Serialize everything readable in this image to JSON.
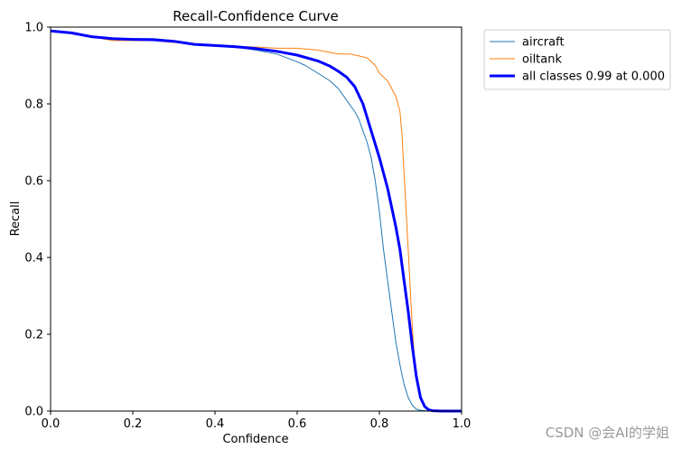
{
  "chart_data": {
    "type": "line",
    "title": "Recall-Confidence Curve",
    "xlabel": "Confidence",
    "ylabel": "Recall",
    "xlim": [
      0,
      1
    ],
    "ylim": [
      0,
      1
    ],
    "xticks": [
      "0.0",
      "0.2",
      "0.4",
      "0.6",
      "0.8",
      "1.0"
    ],
    "yticks": [
      "0.0",
      "0.2",
      "0.4",
      "0.6",
      "0.8",
      "1.0"
    ],
    "grid": false,
    "legend_position": "outside-top-right",
    "series": [
      {
        "name": "aircraft",
        "color": "#1f77b4",
        "x": [
          0.0,
          0.05,
          0.1,
          0.15,
          0.2,
          0.25,
          0.3,
          0.35,
          0.4,
          0.45,
          0.5,
          0.55,
          0.6,
          0.62,
          0.65,
          0.68,
          0.7,
          0.72,
          0.74,
          0.75,
          0.76,
          0.77,
          0.78,
          0.79,
          0.8,
          0.81,
          0.82,
          0.83,
          0.84,
          0.85,
          0.86,
          0.87,
          0.88,
          0.89,
          0.9,
          0.92,
          0.95,
          1.0
        ],
        "y": [
          0.99,
          0.985,
          0.975,
          0.97,
          0.97,
          0.97,
          0.965,
          0.955,
          0.95,
          0.948,
          0.94,
          0.93,
          0.91,
          0.9,
          0.88,
          0.86,
          0.84,
          0.81,
          0.78,
          0.76,
          0.73,
          0.7,
          0.66,
          0.6,
          0.52,
          0.42,
          0.34,
          0.26,
          0.18,
          0.12,
          0.07,
          0.035,
          0.015,
          0.005,
          0.002,
          0.0,
          0.0,
          0.0
        ]
      },
      {
        "name": "oiltank",
        "color": "#ff7f0e",
        "x": [
          0.0,
          0.05,
          0.1,
          0.15,
          0.2,
          0.25,
          0.3,
          0.35,
          0.4,
          0.45,
          0.5,
          0.55,
          0.6,
          0.65,
          0.7,
          0.73,
          0.75,
          0.77,
          0.79,
          0.8,
          0.82,
          0.83,
          0.84,
          0.85,
          0.855,
          0.86,
          0.865,
          0.87,
          0.875,
          0.88,
          0.885,
          0.89,
          0.9,
          0.91,
          0.92,
          0.93,
          0.95,
          1.0
        ],
        "y": [
          0.99,
          0.985,
          0.975,
          0.965,
          0.965,
          0.965,
          0.96,
          0.955,
          0.952,
          0.95,
          0.948,
          0.945,
          0.945,
          0.94,
          0.93,
          0.93,
          0.925,
          0.92,
          0.9,
          0.88,
          0.86,
          0.84,
          0.82,
          0.78,
          0.72,
          0.62,
          0.52,
          0.42,
          0.32,
          0.22,
          0.14,
          0.08,
          0.03,
          0.01,
          0.003,
          0.0,
          0.0,
          0.0
        ]
      },
      {
        "name": "all classes 0.99 at 0.000",
        "color": "#0000ff",
        "x": [
          0.0,
          0.05,
          0.1,
          0.15,
          0.2,
          0.25,
          0.3,
          0.35,
          0.4,
          0.45,
          0.5,
          0.55,
          0.6,
          0.65,
          0.68,
          0.7,
          0.72,
          0.74,
          0.76,
          0.78,
          0.8,
          0.82,
          0.84,
          0.85,
          0.86,
          0.87,
          0.88,
          0.89,
          0.9,
          0.91,
          0.92,
          0.93,
          0.95,
          1.0
        ],
        "y": [
          0.99,
          0.985,
          0.975,
          0.97,
          0.968,
          0.967,
          0.963,
          0.955,
          0.952,
          0.949,
          0.944,
          0.937,
          0.927,
          0.912,
          0.898,
          0.885,
          0.87,
          0.845,
          0.8,
          0.73,
          0.66,
          0.58,
          0.48,
          0.42,
          0.34,
          0.26,
          0.17,
          0.09,
          0.035,
          0.012,
          0.003,
          0.001,
          0.0,
          0.0
        ],
        "linewidth": "thick"
      }
    ]
  },
  "watermark": "CSDN @会AI的学姐"
}
